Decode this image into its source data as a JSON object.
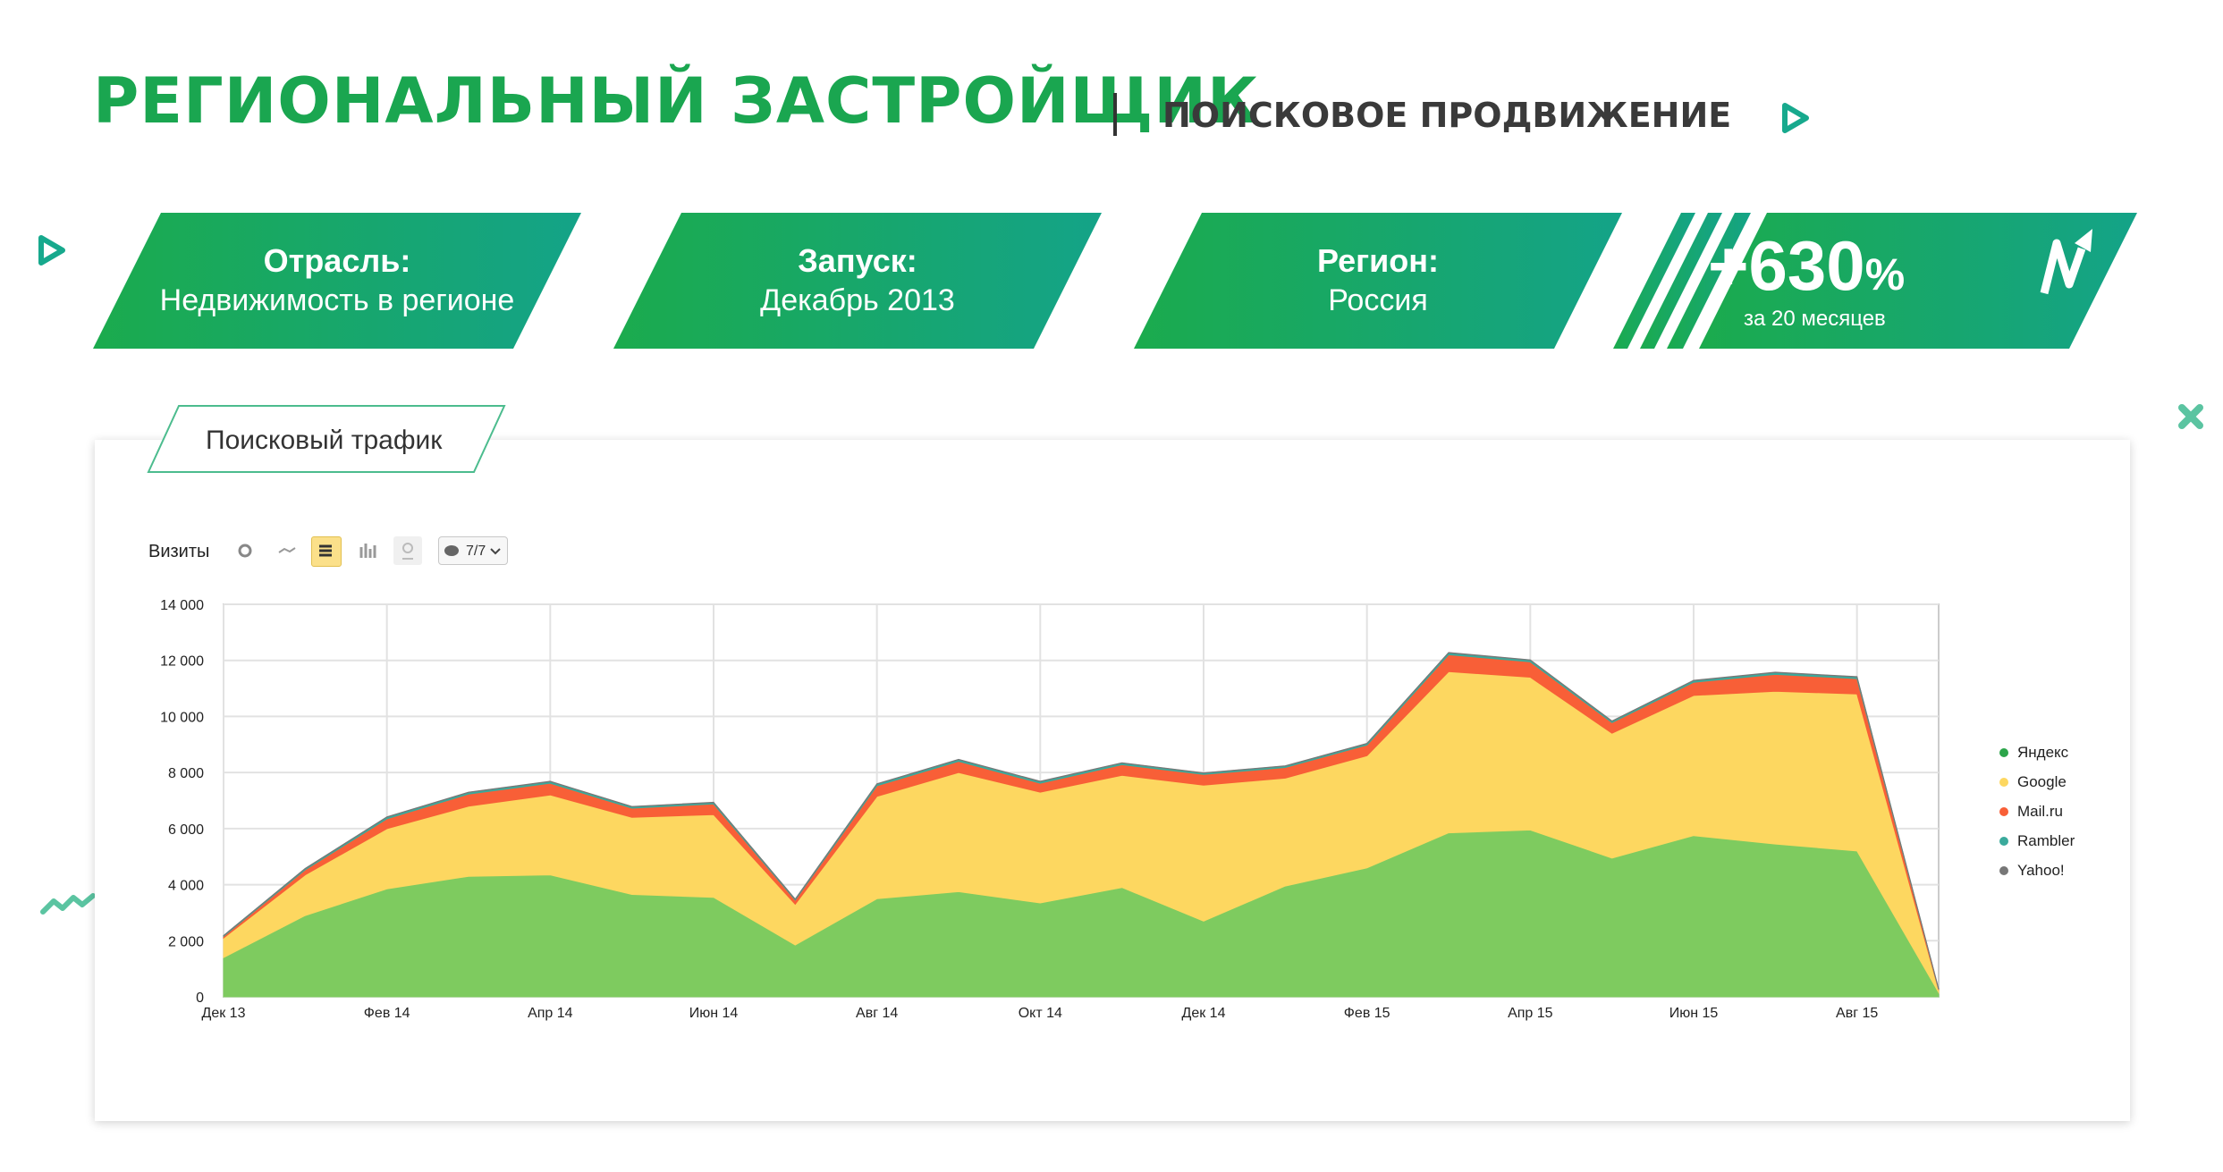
{
  "header": {
    "title": "РЕГИОНАЛЬНЫЙ ЗАСТРОЙЩИК",
    "subtitle": "ПОИСКОВОЕ ПРОДВИЖЕНИЕ"
  },
  "cards": [
    {
      "label": "Отрасль:",
      "value": "Недвижимость в регионе"
    },
    {
      "label": "Запуск:",
      "value": "Декабрь 2013"
    },
    {
      "label": "Регион:",
      "value": "Россия"
    }
  ],
  "growth": {
    "value": "+630",
    "unit": "%",
    "caption": "за 20 месяцев"
  },
  "panel": {
    "tab_label": "Поисковый трафик"
  },
  "toolbar": {
    "label": "Визиты",
    "detail_label": "7/7"
  },
  "colors": {
    "brand_green": "#1aa650",
    "card_start": "#1bab4d",
    "card_end": "#14a388",
    "yandex": "#7ecb5f",
    "google": "#fdd760",
    "mailru": "#f85f37",
    "rambler": "#3aaa9c",
    "yahoo": "#777777"
  },
  "chart_data": {
    "type": "area",
    "stacked": true,
    "ylabel": "Визиты",
    "ylim": [
      0,
      14000
    ],
    "yticks": [
      "0",
      "2 000",
      "4 000",
      "6 000",
      "8 000",
      "10 000",
      "12 000",
      "14 000"
    ],
    "x_tick_labels": [
      "Дек 13",
      "Фев 14",
      "Апр 14",
      "Июн 14",
      "Авг 14",
      "Окт 14",
      "Дек 14",
      "Фев 15",
      "Апр 15",
      "Июн 15",
      "Авг 15"
    ],
    "x": [
      "Дек 13",
      "Янв 14",
      "Фев 14",
      "Мар 14",
      "Апр 14",
      "Май 14",
      "Июн 14",
      "Июл 14",
      "Авг 14",
      "Сен 14",
      "Окт 14",
      "Ноя 14",
      "Дек 14",
      "Янв 15",
      "Фев 15",
      "Мар 15",
      "Апр 15",
      "Май 15",
      "Июн 15",
      "Июл 15",
      "Авг 15",
      "Сен 15"
    ],
    "grid": true,
    "legend_position": "right",
    "series": [
      {
        "name": "Яндекс",
        "color": "#7ecb5f",
        "values": [
          1400,
          2900,
          3850,
          4300,
          4350,
          3650,
          3550,
          1850,
          3500,
          3750,
          3350,
          3900,
          2700,
          3950,
          4600,
          5850,
          5950,
          4950,
          5750,
          5450,
          5200,
          150
        ]
      },
      {
        "name": "Google",
        "color": "#fdd760",
        "values": [
          700,
          1450,
          2150,
          2500,
          2850,
          2750,
          2950,
          1450,
          3650,
          4250,
          3950,
          4000,
          4850,
          3850,
          4000,
          5750,
          5450,
          4450,
          5000,
          5450,
          5600,
          100
        ]
      },
      {
        "name": "Mail.ru",
        "color": "#f85f37",
        "values": [
          60,
          180,
          350,
          430,
          420,
          330,
          380,
          150,
          380,
          400,
          320,
          380,
          380,
          380,
          380,
          600,
          550,
          380,
          470,
          600,
          550,
          20
        ]
      },
      {
        "name": "Rambler",
        "color": "#3aaa9c",
        "values": [
          20,
          40,
          60,
          60,
          60,
          50,
          50,
          30,
          60,
          60,
          60,
          60,
          50,
          50,
          50,
          70,
          60,
          50,
          60,
          70,
          60,
          5
        ]
      },
      {
        "name": "Yahoo!",
        "color": "#777777",
        "values": [
          5,
          10,
          10,
          10,
          10,
          10,
          10,
          5,
          10,
          10,
          10,
          10,
          10,
          10,
          10,
          10,
          10,
          10,
          10,
          10,
          10,
          0
        ]
      }
    ]
  }
}
